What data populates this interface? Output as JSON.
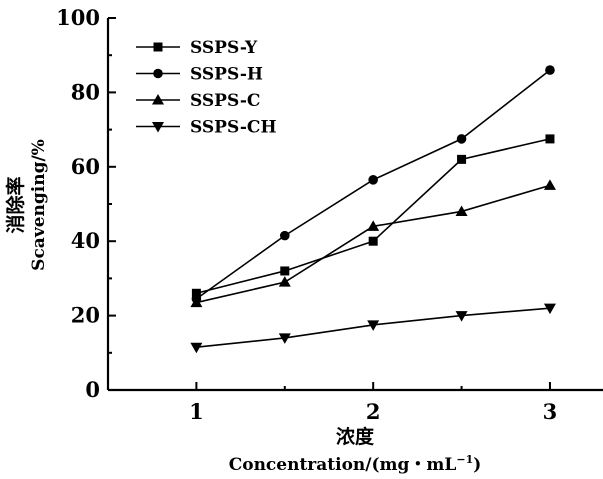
{
  "chart_data": {
    "type": "line",
    "xlabel_cn": "浓度",
    "xlabel": "Concentration/(mg・mL",
    "xlabel_sup": "−1",
    "xlabel_end": ")",
    "ylabel_cn": "消除率",
    "ylabel": "Scavenging/%",
    "xlim": [
      0.5,
      3.3
    ],
    "ylim": [
      0,
      100
    ],
    "x_ticks": [
      1,
      2,
      3
    ],
    "y_ticks": [
      0,
      20,
      40,
      60,
      80,
      100
    ],
    "x_tick_labels": [
      "1",
      "2",
      "3"
    ],
    "y_tick_labels": [
      "0",
      "20",
      "40",
      "60",
      "80",
      "100"
    ],
    "grid": false,
    "legend_position": "top-left",
    "x": [
      1,
      1.5,
      2,
      2.5,
      3
    ],
    "series": [
      {
        "name": "SSPS-Y",
        "marker": "square",
        "values": [
          26,
          32,
          40,
          62,
          67.5
        ]
      },
      {
        "name": "SSPS-H",
        "marker": "circle",
        "values": [
          24.5,
          41.5,
          56.5,
          67.5,
          86
        ]
      },
      {
        "name": "SSPS-C",
        "marker": "triangle-up",
        "values": [
          23.5,
          29,
          44,
          48,
          55
        ]
      },
      {
        "name": "SSPS-CH",
        "marker": "triangle-down",
        "values": [
          11.5,
          14,
          17.5,
          20,
          22
        ]
      }
    ]
  }
}
